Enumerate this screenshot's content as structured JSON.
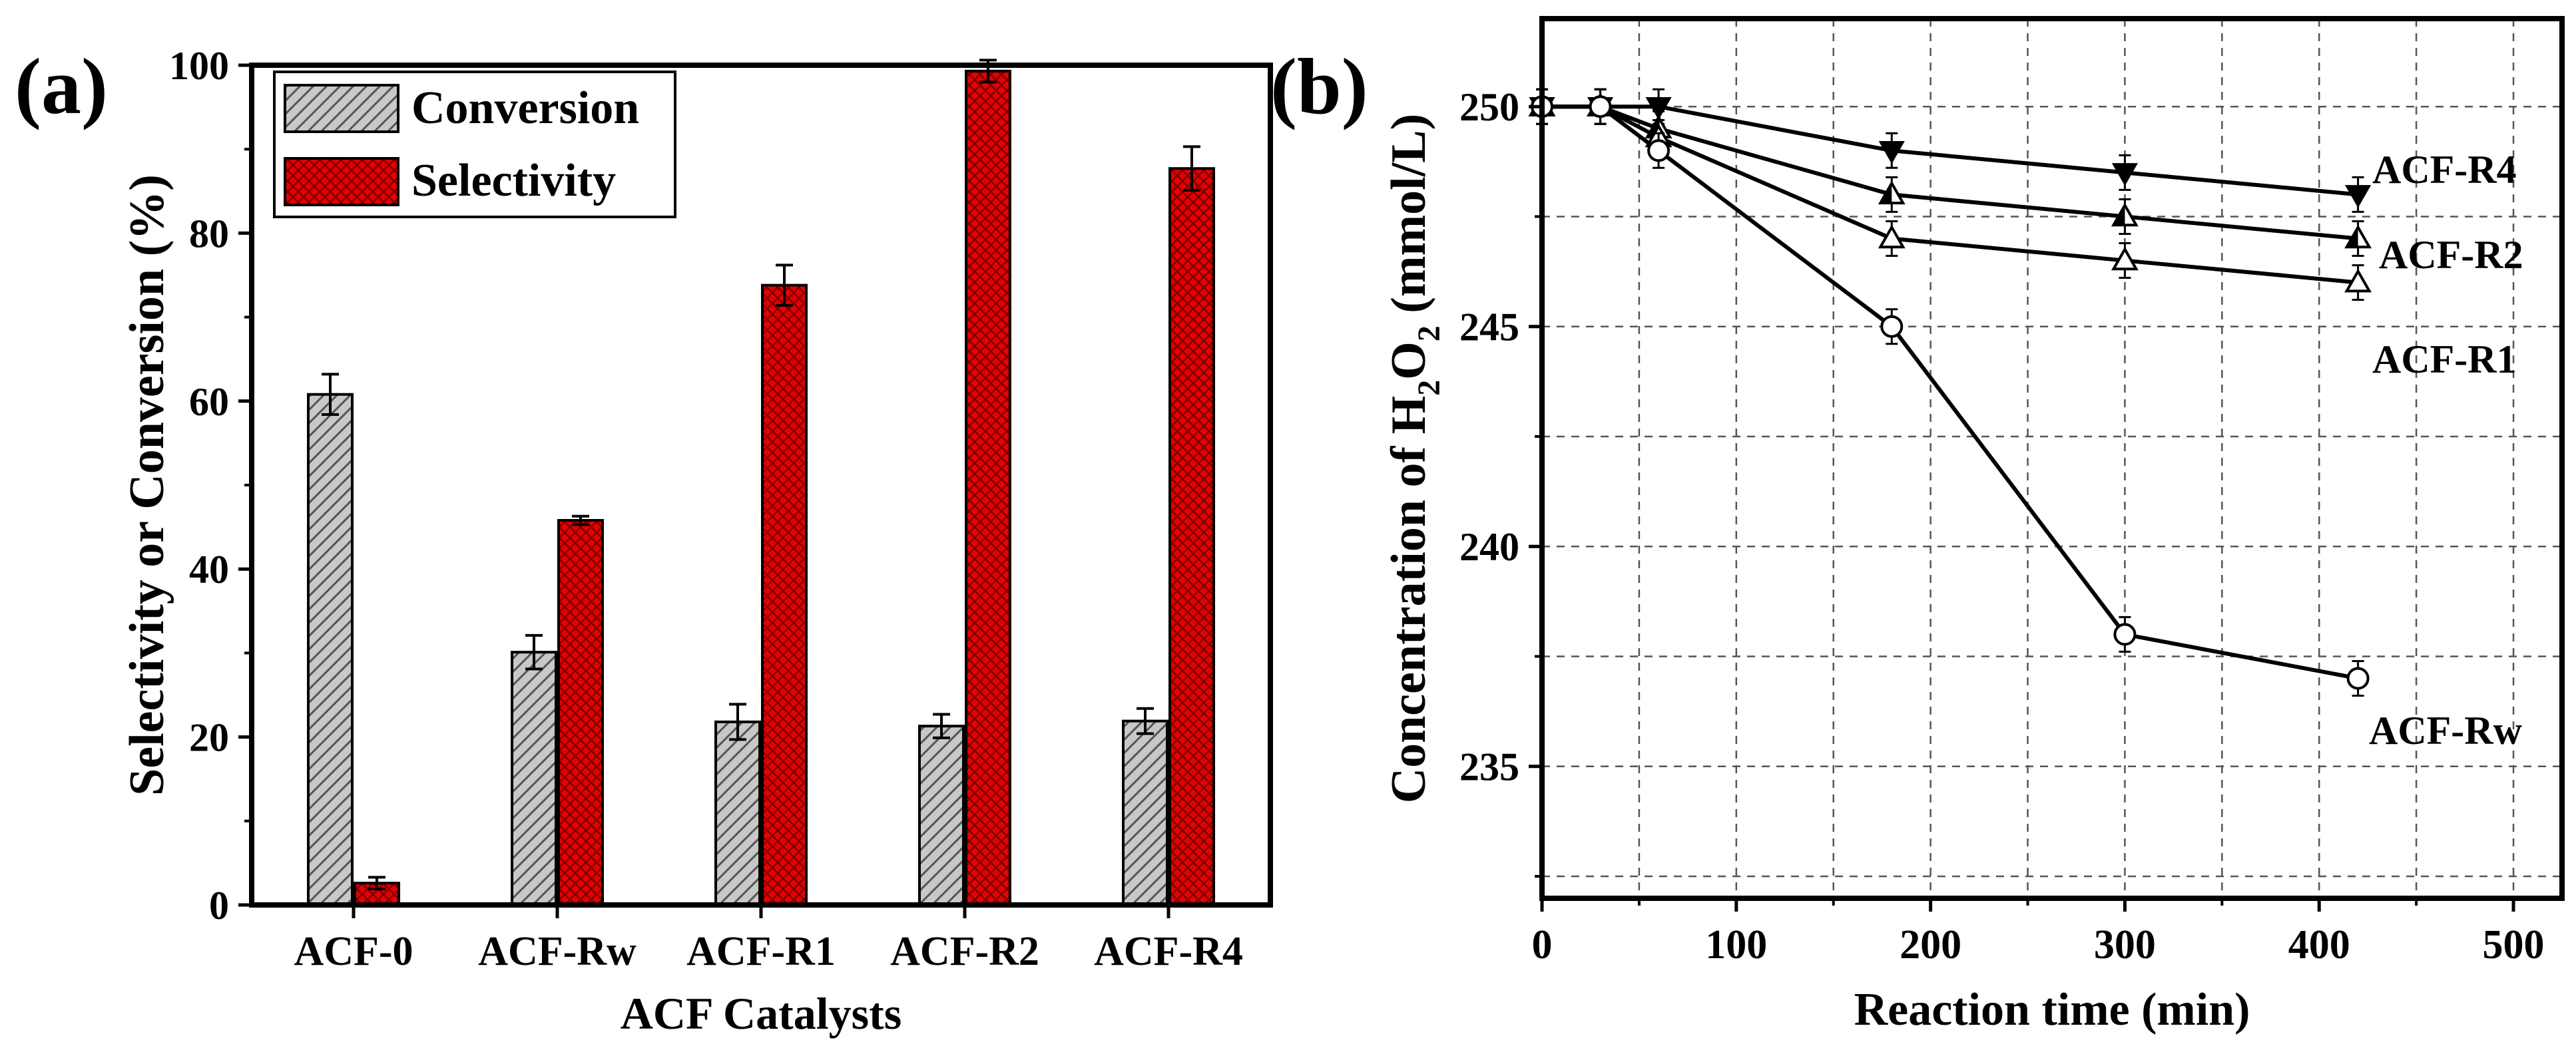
{
  "chart_data": [
    {
      "panel_label": "(a)",
      "type": "bar",
      "title": "",
      "xlabel": "ACF Catalysts",
      "ylabel": "Selectivity or Conversion (%)",
      "ylim": [
        0,
        100
      ],
      "yticks": [
        0,
        20,
        40,
        60,
        80,
        100
      ],
      "categories": [
        "ACF-0",
        "ACF-Rw",
        "ACF-R1",
        "ACF-R2",
        "ACF-R4"
      ],
      "series": [
        {
          "name": "Conversion",
          "pattern": "diagonal-hatch",
          "color": "#c8c8c8",
          "values": [
            60.8,
            30.1,
            21.8,
            21.3,
            21.9
          ],
          "errors": [
            2.4,
            2.0,
            2.1,
            1.4,
            1.5
          ]
        },
        {
          "name": "Selectivity",
          "pattern": "cross-hatch",
          "color": "#e60000",
          "values": [
            2.6,
            45.8,
            73.8,
            99.3,
            87.7
          ],
          "errors": [
            0.7,
            0.5,
            2.4,
            1.3,
            2.6
          ]
        }
      ],
      "legend_position": "top-left",
      "grid": false
    },
    {
      "panel_label": "(b)",
      "type": "line",
      "title": "",
      "xlabel": "Reaction time (min)",
      "ylabel_parts": [
        "Concentration of H",
        "2",
        "O",
        "2",
        " (mmol/L)"
      ],
      "xlim": [
        0,
        525
      ],
      "ylim": [
        232,
        252
      ],
      "xticks": [
        0,
        100,
        200,
        300,
        400,
        500
      ],
      "yticks": [
        235,
        240,
        245,
        250
      ],
      "grid": true,
      "series": [
        {
          "name": "ACF-R4",
          "marker": "triangle-down-filled",
          "x": [
            0,
            30,
            60,
            180,
            300,
            420
          ],
          "y": [
            250,
            250,
            250,
            249,
            248.5,
            248
          ]
        },
        {
          "name": "ACF-R2",
          "marker": "triangle-up-half",
          "x": [
            0,
            30,
            60,
            180,
            300,
            420
          ],
          "y": [
            250,
            250,
            249.5,
            248,
            247.5,
            247
          ]
        },
        {
          "name": "ACF-R1",
          "marker": "triangle-up-open",
          "x": [
            0,
            30,
            60,
            180,
            300,
            420
          ],
          "y": [
            250,
            250,
            249.3,
            247,
            246.5,
            246
          ]
        },
        {
          "name": "ACF-Rw",
          "marker": "circle-open",
          "x": [
            0,
            30,
            60,
            180,
            300,
            420
          ],
          "y": [
            250,
            250,
            249,
            245,
            238,
            237
          ]
        }
      ]
    }
  ]
}
